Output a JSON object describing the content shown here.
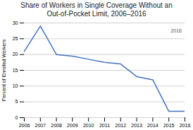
{
  "chart_data": {
    "type": "line",
    "title": "Share of Workers in Single Coverage Without an\nOut-of-Pocket Limit, 2006–2016",
    "ylabel": "Percent of Enrolled Workers",
    "x": [
      2006,
      2007,
      2008,
      2009,
      2010,
      2011,
      2012,
      2013,
      2014,
      2015,
      2016
    ],
    "values": [
      21,
      29,
      20,
      19.5,
      18.5,
      17.5,
      17,
      13,
      12,
      2,
      2
    ],
    "color": "#4472C4",
    "xlim": [
      2006,
      2016
    ],
    "xticks": [
      2006,
      2007,
      2008,
      2009,
      2010,
      2011,
      2012,
      2013,
      2014,
      2015,
      2016
    ],
    "ylim": [
      0,
      30
    ],
    "yticks": [
      0,
      5,
      10,
      15,
      20,
      25,
      30
    ],
    "grid": true,
    "annotations": [
      {
        "text": "2016",
        "x": 2015.8,
        "y": 28
      }
    ]
  }
}
